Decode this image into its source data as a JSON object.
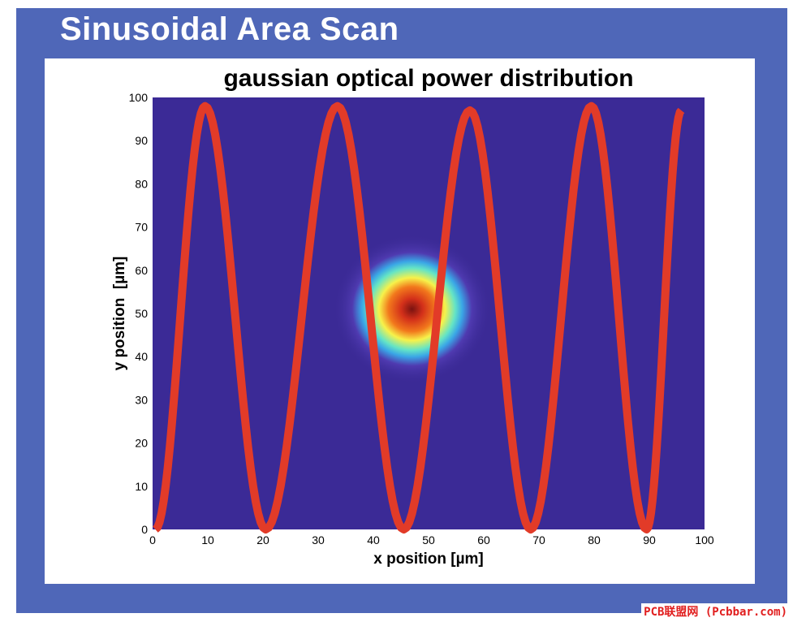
{
  "slide": {
    "title": "Sinusoidal Area Scan"
  },
  "watermark": "PCB联盟网 (Pcbbar.com)",
  "colors": {
    "slide_background": "#4f67b8",
    "plot_background": "#3b2a96",
    "scan_line": "#e23b28",
    "panel": "#ffffff"
  },
  "chart_data": {
    "type": "heatmap",
    "title": "gaussian optical power distribution",
    "xlabel": "x position [µm]",
    "ylabel": "y position  [µm]",
    "xlim": [
      0,
      100
    ],
    "ylim": [
      0,
      100
    ],
    "xticks": [
      "0",
      "10",
      "20",
      "30",
      "40",
      "50",
      "60",
      "70",
      "80",
      "90",
      "100"
    ],
    "yticks": [
      "0",
      "10",
      "20",
      "30",
      "40",
      "50",
      "60",
      "70",
      "80",
      "90",
      "100"
    ],
    "grid": false,
    "legend": "none",
    "gaussian_spot": {
      "center_x": 47,
      "center_y": 51,
      "colormap": [
        "#3b2a96",
        "#3aa6e6",
        "#5fe3d0",
        "#f7f24a",
        "#f7a21a",
        "#e53c1a",
        "#8a1410"
      ]
    },
    "scan_path": {
      "type": "line",
      "points": [
        {
          "x": 0.5,
          "y": 0
        },
        {
          "x": 9.5,
          "y": 98
        },
        {
          "x": 20.5,
          "y": 0
        },
        {
          "x": 33.5,
          "y": 98
        },
        {
          "x": 45.5,
          "y": 0
        },
        {
          "x": 57.5,
          "y": 97
        },
        {
          "x": 68.5,
          "y": 0
        },
        {
          "x": 79.5,
          "y": 98
        },
        {
          "x": 89.5,
          "y": 0
        },
        {
          "x": 95.8,
          "y": 97
        }
      ]
    }
  }
}
